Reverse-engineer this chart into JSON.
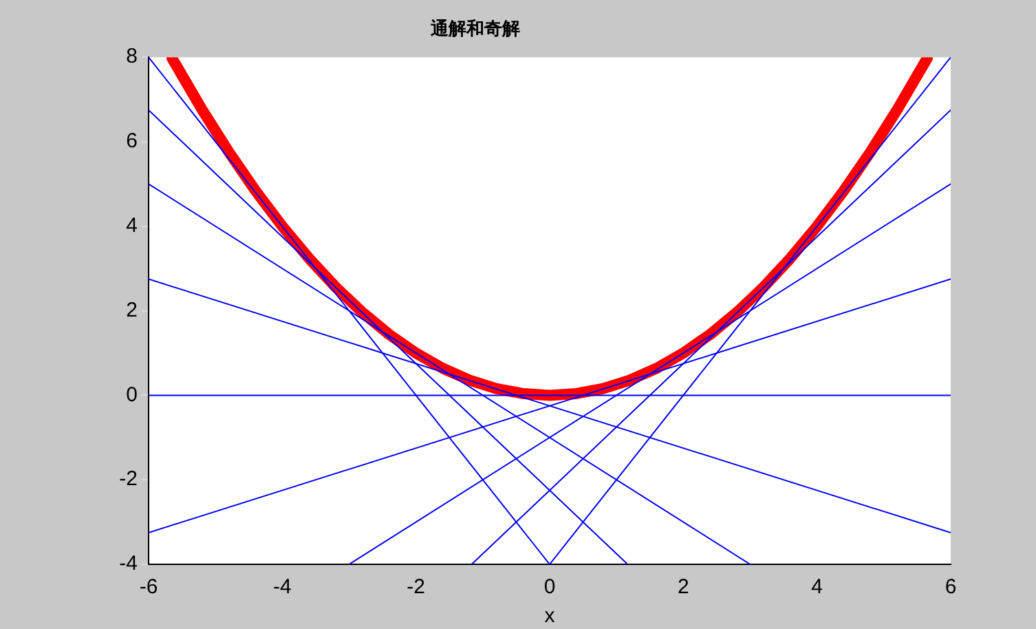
{
  "chart_data": {
    "type": "line",
    "title": "通解和奇解",
    "xlabel": "x",
    "xlim": [
      -6,
      6
    ],
    "xticks": [
      -6,
      -4,
      -2,
      0,
      2,
      4,
      6
    ],
    "ylim": [
      -4,
      8
    ],
    "yticks": [
      -4,
      -2,
      0,
      2,
      4,
      6,
      8
    ],
    "grid": false,
    "legend": false,
    "marker": "none",
    "line_style": "solid",
    "series": [
      {
        "color": "#ff0000",
        "x": [
          -5.65,
          -5.2,
          -4.8,
          -4.4,
          -4,
          -3.6,
          -3.2,
          -2.8,
          -2.4,
          -2,
          -1.6,
          -1.2,
          -0.8,
          -0.4,
          0,
          0.4,
          0.8,
          1.2,
          1.6,
          2,
          2.4,
          2.8,
          3.2,
          3.6,
          4,
          4.4,
          4.8,
          5.2,
          5.65
        ],
        "values": [
          7.98,
          6.76,
          5.76,
          4.84,
          4,
          3.24,
          2.56,
          1.96,
          1.44,
          1,
          0.64,
          0.36,
          0.16,
          0.04,
          0,
          0.04,
          0.16,
          0.36,
          0.64,
          1,
          1.44,
          1.96,
          2.56,
          3.24,
          4,
          4.84,
          5.76,
          6.76,
          7.98
        ]
      },
      {
        "color": "#0000ff",
        "x": [
          -6,
          0
        ],
        "values": [
          8,
          -4
        ]
      },
      {
        "color": "#0000ff",
        "x": [
          -6,
          1.1667
        ],
        "values": [
          6.75,
          -4
        ]
      },
      {
        "color": "#0000ff",
        "x": [
          -6,
          3
        ],
        "values": [
          5,
          -4
        ]
      },
      {
        "color": "#0000ff",
        "x": [
          -6,
          6
        ],
        "values": [
          2.75,
          -3.25
        ]
      },
      {
        "color": "#0000ff",
        "x": [
          -6,
          6
        ],
        "values": [
          0,
          0
        ]
      },
      {
        "color": "#0000ff",
        "x": [
          -6,
          6
        ],
        "values": [
          -3.25,
          2.75
        ]
      },
      {
        "color": "#0000ff",
        "x": [
          -3,
          6
        ],
        "values": [
          -4,
          5
        ]
      },
      {
        "color": "#0000ff",
        "x": [
          -1.1667,
          6
        ],
        "values": [
          -4,
          6.75
        ]
      },
      {
        "color": "#0000ff",
        "x": [
          0,
          6
        ],
        "values": [
          -4,
          8
        ]
      }
    ]
  }
}
